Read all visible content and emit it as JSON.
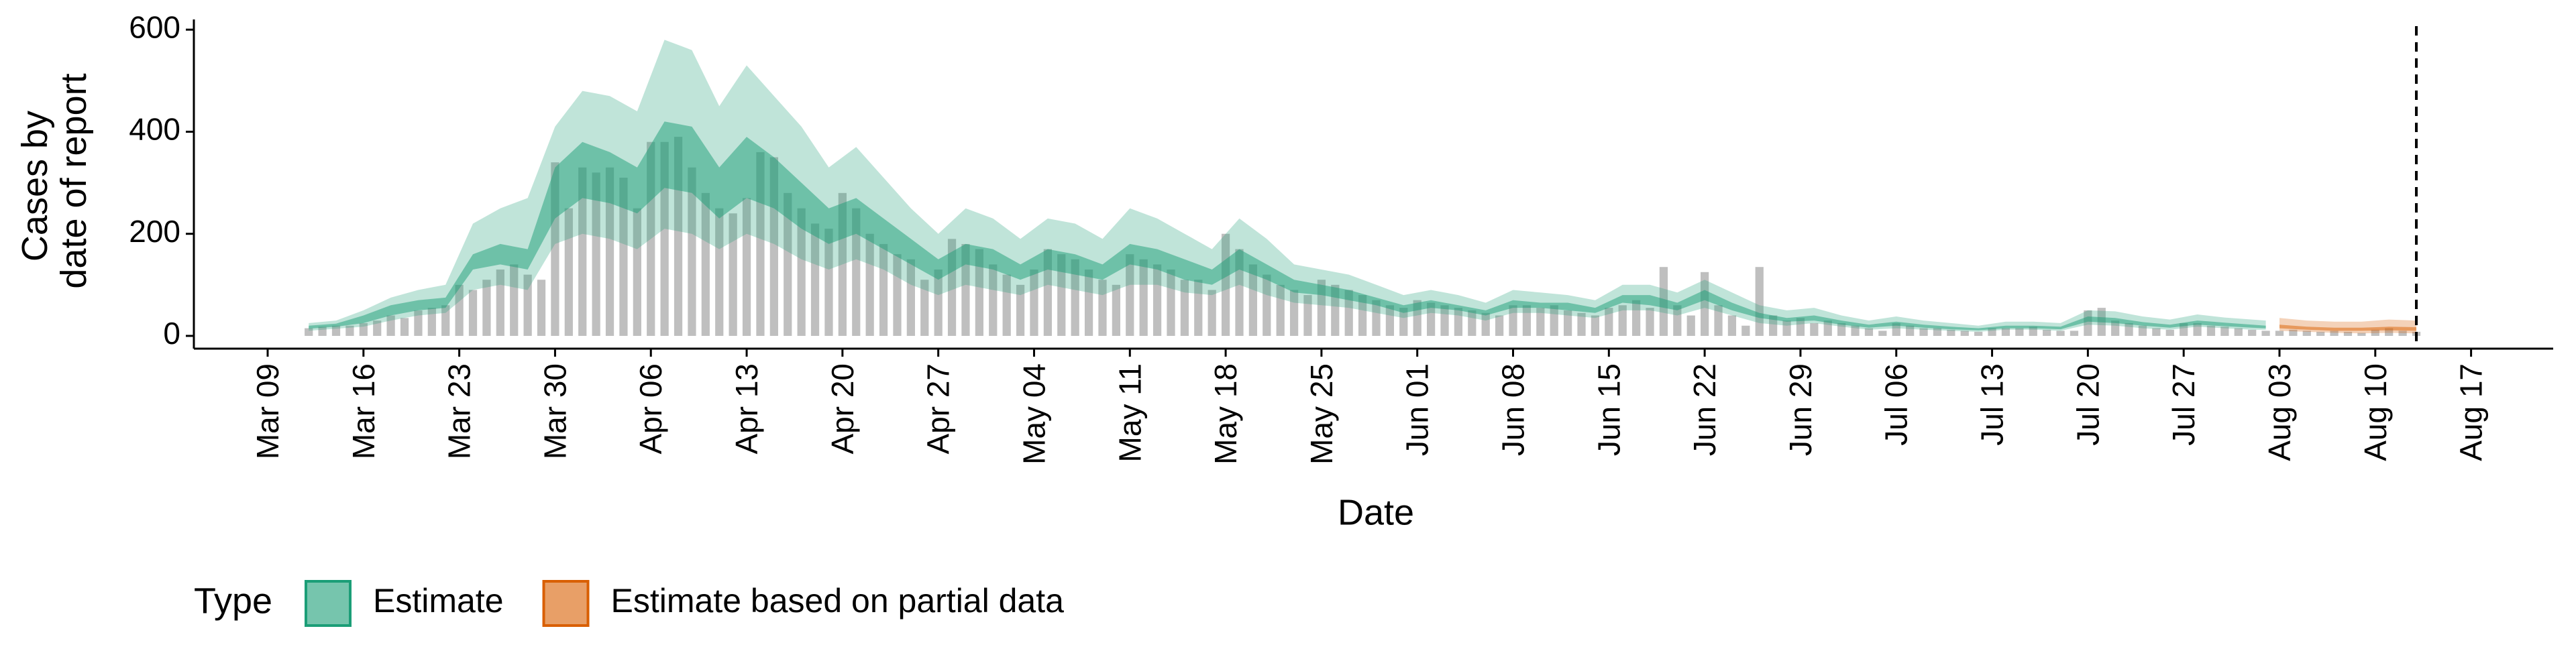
{
  "chart_data": {
    "type": "ribbon",
    "xlabel": "Date",
    "ylabel": [
      "Cases by",
      "date of report"
    ],
    "legend_title": "Type",
    "legend_position": "bottom",
    "xlim": [
      "Mar 04",
      "Aug 23"
    ],
    "xticks": [
      "Mar 09",
      "Mar 16",
      "Mar 23",
      "Mar 30",
      "Apr 06",
      "Apr 13",
      "Apr 20",
      "Apr 27",
      "May 04",
      "May 11",
      "May 18",
      "May 25",
      "Jun 01",
      "Jun 08",
      "Jun 15",
      "Jun 22",
      "Jun 29",
      "Jul 06",
      "Jul 13",
      "Jul 20",
      "Jul 27",
      "Aug 03",
      "Aug 10",
      "Aug 17"
    ],
    "ylim": [
      -25,
      620
    ],
    "yticks": [
      0,
      200,
      400,
      600
    ],
    "vline": "Aug 13",
    "observed": {
      "color": "#a9a9a9",
      "x": [
        "Mar 12",
        "Mar 13",
        "Mar 14",
        "Mar 15",
        "Mar 16",
        "Mar 17",
        "Mar 18",
        "Mar 19",
        "Mar 20",
        "Mar 21",
        "Mar 22",
        "Mar 23",
        "Mar 24",
        "Mar 25",
        "Mar 26",
        "Mar 27",
        "Mar 28",
        "Mar 29",
        "Mar 30",
        "Mar 31",
        "Apr 01",
        "Apr 02",
        "Apr 03",
        "Apr 04",
        "Apr 05",
        "Apr 06",
        "Apr 07",
        "Apr 08",
        "Apr 09",
        "Apr 10",
        "Apr 11",
        "Apr 12",
        "Apr 13",
        "Apr 14",
        "Apr 15",
        "Apr 16",
        "Apr 17",
        "Apr 18",
        "Apr 19",
        "Apr 20",
        "Apr 21",
        "Apr 22",
        "Apr 23",
        "Apr 24",
        "Apr 25",
        "Apr 26",
        "Apr 27",
        "Apr 28",
        "Apr 29",
        "Apr 30",
        "May 01",
        "May 02",
        "May 03",
        "May 04",
        "May 05",
        "May 06",
        "May 07",
        "May 08",
        "May 09",
        "May 10",
        "May 11",
        "May 12",
        "May 13",
        "May 14",
        "May 15",
        "May 16",
        "May 17",
        "May 18",
        "May 19",
        "May 20",
        "May 21",
        "May 22",
        "May 23",
        "May 24",
        "May 25",
        "May 26",
        "May 27",
        "May 28",
        "May 29",
        "May 30",
        "May 31",
        "Jun 01",
        "Jun 02",
        "Jun 03",
        "Jun 04",
        "Jun 05",
        "Jun 06",
        "Jun 07",
        "Jun 08",
        "Jun 09",
        "Jun 10",
        "Jun 11",
        "Jun 12",
        "Jun 13",
        "Jun 14",
        "Jun 15",
        "Jun 16",
        "Jun 17",
        "Jun 18",
        "Jun 19",
        "Jun 20",
        "Jun 21",
        "Jun 22",
        "Jun 23",
        "Jun 24",
        "Jun 25",
        "Jun 26",
        "Jun 27",
        "Jun 28",
        "Jun 29",
        "Jun 30",
        "Jul 01",
        "Jul 02",
        "Jul 03",
        "Jul 04",
        "Jul 05",
        "Jul 06",
        "Jul 07",
        "Jul 08",
        "Jul 09",
        "Jul 10",
        "Jul 11",
        "Jul 12",
        "Jul 13",
        "Jul 14",
        "Jul 15",
        "Jul 16",
        "Jul 17",
        "Jul 18",
        "Jul 19",
        "Jul 20",
        "Jul 21",
        "Jul 22",
        "Jul 23",
        "Jul 24",
        "Jul 25",
        "Jul 26",
        "Jul 27",
        "Jul 28",
        "Jul 29",
        "Jul 30",
        "Jul 31",
        "Aug 01",
        "Aug 02",
        "Aug 03",
        "Aug 04",
        "Aug 05",
        "Aug 06",
        "Aug 07",
        "Aug 08",
        "Aug 09",
        "Aug 10",
        "Aug 11",
        "Aug 12",
        "Aug 13"
      ],
      "values": [
        15,
        18,
        20,
        20,
        25,
        30,
        40,
        35,
        50,
        55,
        60,
        100,
        90,
        110,
        130,
        140,
        120,
        110,
        340,
        250,
        330,
        320,
        330,
        310,
        250,
        380,
        380,
        390,
        330,
        280,
        250,
        240,
        270,
        360,
        350,
        280,
        250,
        220,
        210,
        280,
        250,
        200,
        180,
        160,
        150,
        110,
        130,
        190,
        180,
        170,
        140,
        120,
        100,
        130,
        170,
        160,
        150,
        130,
        110,
        100,
        160,
        150,
        140,
        130,
        110,
        110,
        90,
        200,
        170,
        140,
        120,
        100,
        90,
        80,
        110,
        100,
        90,
        80,
        70,
        60,
        55,
        70,
        65,
        60,
        55,
        50,
        45,
        40,
        60,
        60,
        55,
        60,
        50,
        45,
        40,
        55,
        60,
        70,
        55,
        135,
        60,
        40,
        125,
        60,
        40,
        20,
        135,
        40,
        30,
        35,
        25,
        30,
        25,
        20,
        15,
        10,
        25,
        20,
        15,
        15,
        12,
        10,
        8,
        15,
        15,
        15,
        18,
        12,
        10,
        10,
        50,
        55,
        30,
        25,
        20,
        15,
        12,
        25,
        25,
        20,
        18,
        15,
        12,
        10,
        10,
        12,
        10,
        8,
        10,
        8,
        6,
        12,
        15,
        10,
        8
      ]
    },
    "series": [
      {
        "name": "Estimate",
        "color": "#1b9e77",
        "x": [
          "Mar 12",
          "Mar 14",
          "Mar 16",
          "Mar 18",
          "Mar 20",
          "Mar 22",
          "Mar 24",
          "Mar 26",
          "Mar 28",
          "Mar 30",
          "Apr 01",
          "Apr 03",
          "Apr 05",
          "Apr 07",
          "Apr 09",
          "Apr 11",
          "Apr 13",
          "Apr 15",
          "Apr 17",
          "Apr 19",
          "Apr 21",
          "Apr 23",
          "Apr 25",
          "Apr 27",
          "Apr 29",
          "May 01",
          "May 03",
          "May 05",
          "May 07",
          "May 09",
          "May 11",
          "May 13",
          "May 15",
          "May 17",
          "May 19",
          "May 21",
          "May 23",
          "May 25",
          "May 27",
          "May 29",
          "May 31",
          "Jun 02",
          "Jun 04",
          "Jun 06",
          "Jun 08",
          "Jun 10",
          "Jun 12",
          "Jun 14",
          "Jun 16",
          "Jun 18",
          "Jun 20",
          "Jun 22",
          "Jun 24",
          "Jun 26",
          "Jun 28",
          "Jun 30",
          "Jul 02",
          "Jul 04",
          "Jul 06",
          "Jul 08",
          "Jul 10",
          "Jul 12",
          "Jul 14",
          "Jul 16",
          "Jul 18",
          "Jul 20",
          "Jul 22",
          "Jul 24",
          "Jul 26",
          "Jul 28",
          "Jul 30",
          "Aug 01",
          "Aug 02"
        ],
        "lower_90": [
          10,
          14,
          18,
          30,
          40,
          45,
          90,
          100,
          90,
          180,
          200,
          190,
          170,
          210,
          200,
          170,
          200,
          180,
          150,
          130,
          150,
          130,
          100,
          80,
          100,
          90,
          80,
          100,
          90,
          80,
          100,
          100,
          85,
          80,
          100,
          80,
          65,
          60,
          55,
          45,
          35,
          45,
          40,
          30,
          45,
          45,
          40,
          35,
          50,
          50,
          40,
          55,
          40,
          25,
          20,
          25,
          18,
          12,
          15,
          12,
          10,
          8,
          12,
          12,
          10,
          22,
          20,
          15,
          12,
          18,
          15,
          12,
          12
        ],
        "lower_50": [
          14,
          18,
          25,
          40,
          50,
          55,
          130,
          140,
          130,
          230,
          270,
          260,
          240,
          290,
          280,
          230,
          270,
          250,
          210,
          180,
          200,
          170,
          140,
          110,
          140,
          130,
          110,
          130,
          120,
          110,
          140,
          130,
          110,
          100,
          130,
          110,
          85,
          80,
          70,
          60,
          45,
          55,
          50,
          40,
          55,
          55,
          50,
          45,
          65,
          60,
          50,
          70,
          50,
          35,
          28,
          30,
          22,
          16,
          20,
          16,
          13,
          11,
          15,
          15,
          13,
          28,
          25,
          20,
          16,
          22,
          19,
          16,
          15
        ],
        "upper_50": [
          20,
          24,
          40,
          60,
          70,
          75,
          160,
          180,
          170,
          330,
          380,
          360,
          330,
          420,
          410,
          330,
          390,
          350,
          300,
          250,
          270,
          230,
          190,
          150,
          180,
          170,
          140,
          170,
          160,
          140,
          180,
          170,
          150,
          130,
          170,
          140,
          110,
          100,
          90,
          75,
          60,
          70,
          60,
          50,
          70,
          65,
          65,
          55,
          80,
          80,
          65,
          90,
          65,
          45,
          35,
          40,
          30,
          22,
          28,
          22,
          18,
          15,
          20,
          20,
          18,
          38,
          35,
          27,
          22,
          30,
          26,
          22,
          20
        ],
        "upper_90": [
          25,
          30,
          50,
          75,
          90,
          100,
          220,
          250,
          270,
          410,
          480,
          470,
          440,
          580,
          560,
          450,
          530,
          470,
          410,
          330,
          370,
          310,
          250,
          200,
          250,
          230,
          190,
          230,
          220,
          190,
          250,
          230,
          200,
          170,
          230,
          190,
          140,
          130,
          120,
          100,
          80,
          90,
          80,
          65,
          90,
          85,
          80,
          70,
          100,
          100,
          85,
          110,
          85,
          60,
          50,
          55,
          40,
          30,
          38,
          30,
          25,
          20,
          28,
          28,
          25,
          50,
          48,
          38,
          32,
          42,
          36,
          32,
          30
        ]
      },
      {
        "name": "Estimate based on partial data",
        "color": "#d95f02",
        "x": [
          "Aug 03",
          "Aug 05",
          "Aug 07",
          "Aug 09",
          "Aug 11",
          "Aug 13"
        ],
        "lower_90": [
          10,
          8,
          6,
          5,
          6,
          5
        ],
        "lower_50": [
          15,
          12,
          10,
          10,
          11,
          10
        ],
        "upper_50": [
          22,
          18,
          16,
          16,
          18,
          17
        ],
        "upper_90": [
          35,
          30,
          28,
          28,
          32,
          30
        ]
      }
    ]
  }
}
